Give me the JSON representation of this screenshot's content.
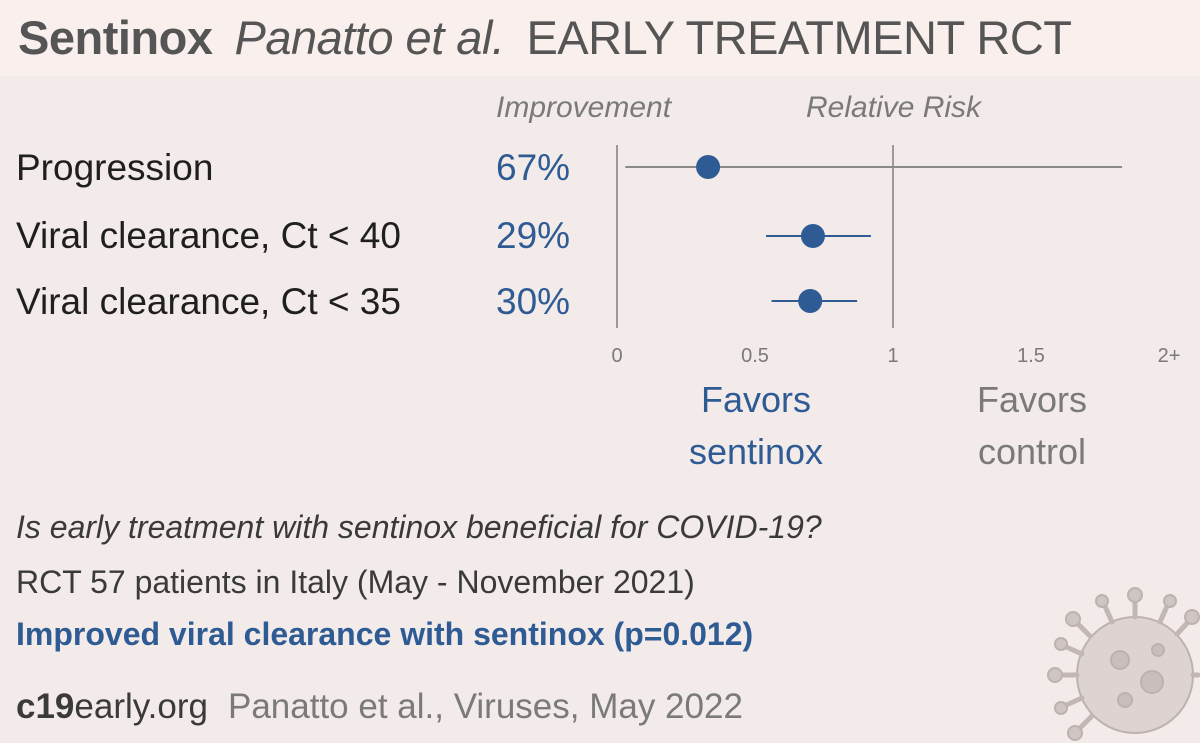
{
  "header": {
    "drug": "Sentinox",
    "authors": "Panatto et al.",
    "trial": "EARLY TREATMENT  RCT"
  },
  "columns": {
    "improvement": "Improvement",
    "relative_risk": "Relative Risk"
  },
  "rows": [
    {
      "label": "Progression",
      "improvement": "67%"
    },
    {
      "label": "Viral clearance, Ct < 40",
      "improvement": "29%"
    },
    {
      "label": "Viral clearance, Ct < 35",
      "improvement": "30%"
    }
  ],
  "favors": {
    "treatment_line1": "Favors",
    "treatment_line2": "sentinox",
    "control_line1": "Favors",
    "control_line2": "control"
  },
  "summary": {
    "question": "Is early treatment with sentinox beneficial for COVID-19?",
    "details": "RCT 57 patients in Italy (May - November 2021)",
    "conclusion": "Improved viral clearance with sentinox (p=0.012)"
  },
  "footer": {
    "site_bold": "c19",
    "site_rest": "early.org",
    "citation": "Panatto et al., Viruses, May 2022"
  },
  "colors": {
    "accent": "#2f5b94",
    "axis": "#9a9a9a",
    "ci_gray": "#8a8a8a",
    "background": "#f3ebe9"
  },
  "chart_data": {
    "type": "scatter",
    "title": "",
    "xlabel": "Relative Risk",
    "xlim": [
      0,
      2
    ],
    "x_ticks": [
      "0",
      "0.5",
      "1",
      "1.5",
      "2+"
    ],
    "x_tick_values": [
      0,
      0.5,
      1,
      1.5,
      2
    ],
    "reference_line": 1,
    "series": [
      {
        "name": "Progression",
        "point": 0.33,
        "ci_low": 0.03,
        "ci_high": 1.83,
        "ci_color": "gray"
      },
      {
        "name": "Viral clearance, Ct < 40",
        "point": 0.71,
        "ci_low": 0.54,
        "ci_high": 0.92,
        "ci_color": "blue"
      },
      {
        "name": "Viral clearance, Ct < 35",
        "point": 0.7,
        "ci_low": 0.56,
        "ci_high": 0.87,
        "ci_color": "blue"
      }
    ]
  }
}
